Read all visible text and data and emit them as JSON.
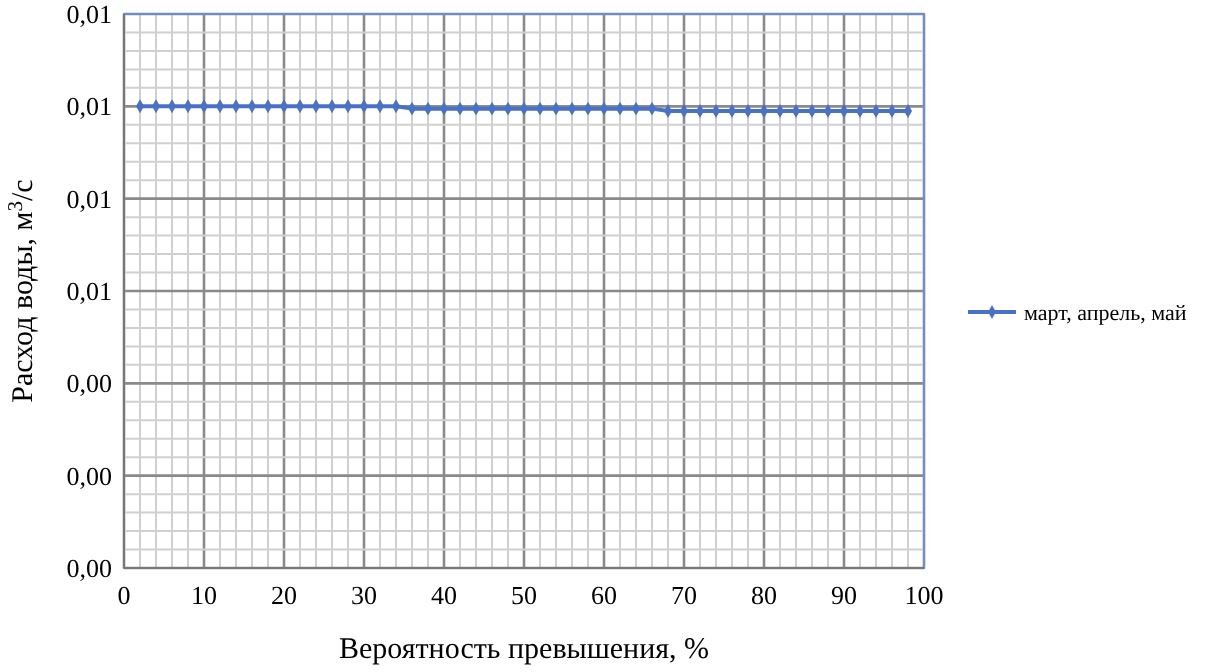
{
  "chart_data": {
    "type": "line",
    "xlabel": "Вероятность превышения, %",
    "ylabel": "Расход воды, м$^{3}$/с",
    "xlim": [
      0,
      100
    ],
    "ylim": [
      0,
      0.012
    ],
    "xticks": [
      0,
      {
        "value": 2,
        "label": null
      },
      {
        "value": 4,
        "label": null
      },
      {
        "value": 6,
        "label": null
      },
      {
        "value": 8,
        "label": null
      },
      10,
      {
        "value": 12,
        "label": null
      },
      {
        "value": 14,
        "label": null
      },
      {
        "value": 16,
        "label": null
      },
      {
        "value": 18,
        "label": null
      },
      20,
      {
        "value": 22,
        "label": null
      },
      {
        "value": 24,
        "label": null
      },
      {
        "value": 26,
        "label": null
      },
      {
        "value": 28,
        "label": null
      },
      30,
      {
        "value": 32,
        "label": null
      },
      {
        "value": 34,
        "label": null
      },
      {
        "value": 36,
        "label": null
      },
      {
        "value": 38,
        "label": null
      },
      40,
      {
        "value": 42,
        "label": null
      },
      {
        "value": 44,
        "label": null
      },
      {
        "value": 46,
        "label": null
      },
      {
        "value": 48,
        "label": null
      },
      50,
      {
        "value": 52,
        "label": null
      },
      {
        "value": 54,
        "label": null
      },
      {
        "value": 56,
        "label": null
      },
      {
        "value": 58,
        "label": null
      },
      60,
      {
        "value": 62,
        "label": null
      },
      {
        "value": 64,
        "label": null
      },
      {
        "value": 66,
        "label": null
      },
      {
        "value": 68,
        "label": null
      },
      70,
      {
        "value": 72,
        "label": null
      },
      {
        "value": 74,
        "label": null
      },
      {
        "value": 76,
        "label": null
      },
      {
        "value": 78,
        "label": null
      },
      80,
      {
        "value": 82,
        "label": null
      },
      {
        "value": 84,
        "label": null
      },
      {
        "value": 86,
        "label": null
      },
      {
        "value": 88,
        "label": null
      },
      90,
      {
        "value": 92,
        "label": null
      },
      {
        "value": 94,
        "label": null
      },
      {
        "value": 96,
        "label": null
      },
      {
        "value": 98,
        "label": null
      },
      100
    ],
    "yticks": [
      {
        "value": 0,
        "label": "0,00"
      },
      {
        "value": 0.0004,
        "label": null
      },
      {
        "value": 0.0008,
        "label": null
      },
      {
        "value": 0.0012,
        "label": null
      },
      {
        "value": 0.0016,
        "label": null
      },
      {
        "value": 0.002,
        "label": "0,00"
      },
      {
        "value": 0.0024,
        "label": null
      },
      {
        "value": 0.0028,
        "label": null
      },
      {
        "value": 0.0032,
        "label": null
      },
      {
        "value": 0.0036,
        "label": null
      },
      {
        "value": 0.004,
        "label": "0,00"
      },
      {
        "value": 0.0044,
        "label": null
      },
      {
        "value": 0.0048,
        "label": null
      },
      {
        "value": 0.0052,
        "label": null
      },
      {
        "value": 0.0056,
        "label": null
      },
      {
        "value": 0.006,
        "label": "0,01"
      },
      {
        "value": 0.0064,
        "label": null
      },
      {
        "value": 0.0068,
        "label": null
      },
      {
        "value": 0.0072,
        "label": null
      },
      {
        "value": 0.0076,
        "label": null
      },
      {
        "value": 0.008,
        "label": "0,01"
      },
      {
        "value": 0.0084,
        "label": null
      },
      {
        "value": 0.0088,
        "label": null
      },
      {
        "value": 0.0092,
        "label": null
      },
      {
        "value": 0.0096,
        "label": null
      },
      {
        "value": 0.01,
        "label": "0,01"
      },
      {
        "value": 0.0104,
        "label": null
      },
      {
        "value": 0.0108,
        "label": null
      },
      {
        "value": 0.0112,
        "label": null
      },
      {
        "value": 0.0116,
        "label": null
      },
      {
        "value": 0.012,
        "label": "0,01"
      }
    ],
    "grid": true,
    "legend": "right",
    "marker": "diamond",
    "line_style": "solid",
    "series": [
      {
        "name": "март, апрель, май",
        "color": "#4a72c4",
        "x": [
          2,
          4,
          6,
          8,
          10,
          12,
          14,
          16,
          18,
          20,
          22,
          24,
          26,
          28,
          30,
          32,
          34,
          36,
          38,
          40,
          42,
          44,
          46,
          48,
          50,
          52,
          54,
          56,
          58,
          60,
          62,
          64,
          66,
          68,
          70,
          72,
          74,
          76,
          78,
          80,
          82,
          84,
          86,
          88,
          90,
          92,
          94,
          96,
          98
        ],
        "values": [
          0.01,
          0.01,
          0.01,
          0.01,
          0.01,
          0.01,
          0.01,
          0.01,
          0.01,
          0.01,
          0.01,
          0.01,
          0.01,
          0.01,
          0.01,
          0.01,
          0.01,
          0.00995,
          0.00995,
          0.00995,
          0.00995,
          0.00995,
          0.00995,
          0.00995,
          0.00995,
          0.00995,
          0.00995,
          0.00995,
          0.00995,
          0.00995,
          0.00995,
          0.00995,
          0.00995,
          0.0099,
          0.0099,
          0.0099,
          0.0099,
          0.0099,
          0.0099,
          0.0099,
          0.0099,
          0.0099,
          0.0099,
          0.0099,
          0.0099,
          0.0099,
          0.0099,
          0.0099,
          0.0099
        ]
      }
    ]
  }
}
